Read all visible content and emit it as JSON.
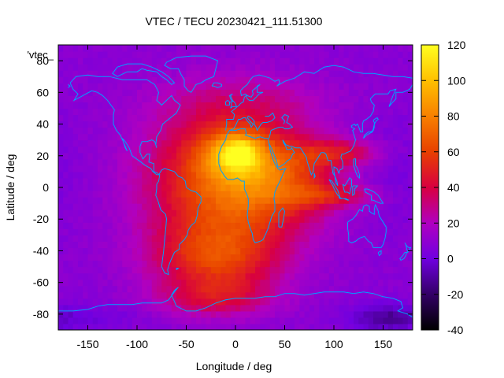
{
  "chart_data": {
    "type": "heatmap",
    "title": "VTEC / TECU 20230421_111.51300",
    "xlabel": "Longitude / deg",
    "ylabel": "Latitude / deg",
    "key_label": "'vtec_",
    "xlim": [
      -180,
      180
    ],
    "ylim": [
      -90,
      90
    ],
    "x_ticks": [
      -150,
      -100,
      -50,
      0,
      50,
      100,
      150
    ],
    "y_ticks": [
      -80,
      -60,
      -40,
      -20,
      0,
      20,
      40,
      60,
      80
    ],
    "x_tick_labels": [
      "-150",
      "-100",
      "-50",
      "0",
      "50",
      "100",
      "150"
    ],
    "y_tick_labels": [
      "-80",
      "-60",
      "-40",
      "-20",
      "0",
      "20",
      "40",
      "60",
      "80"
    ],
    "colorbar": {
      "range": [
        -40,
        120
      ],
      "ticks": [
        -40,
        -20,
        0,
        20,
        40,
        60,
        80,
        100,
        120
      ],
      "tick_labels": [
        "-40",
        "-20",
        "0",
        "20",
        "40",
        "60",
        "80",
        "100",
        "120"
      ],
      "palette": "gnuplot-pm3d"
    },
    "field_features": [
      {
        "lon": 0,
        "lat": 22,
        "vtec": 110
      },
      {
        "lon": -20,
        "lat": 5,
        "vtec": 75
      },
      {
        "lon": 40,
        "lat": 5,
        "vtec": 70
      },
      {
        "lon": 110,
        "lat": 20,
        "vtec": 55
      },
      {
        "lon": -20,
        "lat": -45,
        "vtec": 55
      },
      {
        "lon": -150,
        "lat": -70,
        "vtec": 10
      },
      {
        "lon": 150,
        "lat": -80,
        "vtec": -15
      }
    ],
    "grid": false,
    "coastline_color": "#00a0ff"
  }
}
